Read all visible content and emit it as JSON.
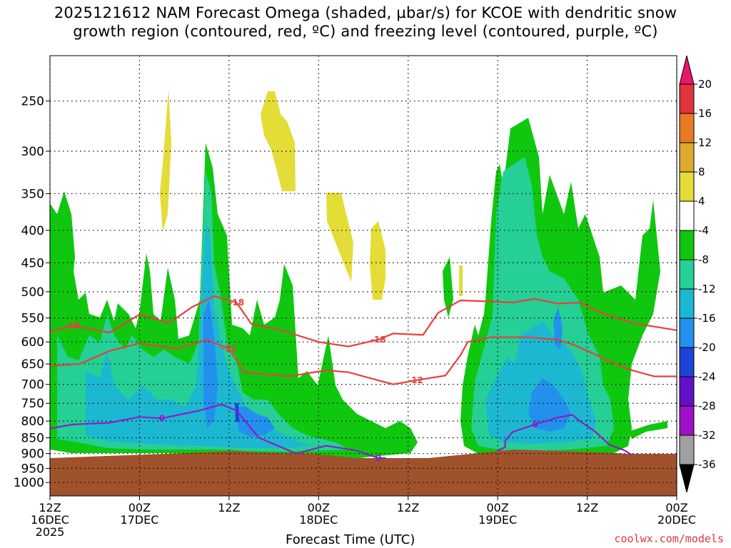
{
  "title_lines": [
    "2025121612 NAM Forecast Omega (shaded, µbar/s) for KCOE with dendritic snow",
    "growth region (contoured, red, ºC) and freezing level (contoured, purple, ºC)"
  ],
  "xaxis_title": "Forecast Time (UTC)",
  "footer": "coolwx.com/models",
  "chart_data": {
    "type": "heatmap",
    "title": "2025121612 NAM Forecast Omega (shaded, µbar/s) for KCOE with dendritic snow growth region (contoured, red, ºC) and freezing level (contoured, purple, ºC)",
    "xlabel": "Forecast Time (UTC)",
    "ylabel": "",
    "x_ticks": [
      {
        "hour": 0,
        "lines": [
          "12Z",
          "16DEC",
          "2025"
        ]
      },
      {
        "hour": 12,
        "lines": [
          "00Z",
          "17DEC"
        ]
      },
      {
        "hour": 24,
        "lines": [
          "12Z"
        ]
      },
      {
        "hour": 36,
        "lines": [
          "00Z",
          "18DEC"
        ]
      },
      {
        "hour": 48,
        "lines": [
          "12Z"
        ]
      },
      {
        "hour": 60,
        "lines": [
          "00Z",
          "19DEC"
        ]
      },
      {
        "hour": 72,
        "lines": [
          "12Z"
        ]
      },
      {
        "hour": 84,
        "lines": [
          "00Z",
          "20DEC"
        ]
      }
    ],
    "x_range_hours": [
      0,
      84
    ],
    "y_ticks_mb": [
      250,
      300,
      350,
      400,
      450,
      500,
      550,
      600,
      650,
      700,
      750,
      800,
      850,
      900,
      950,
      1000
    ],
    "y_scale": "log-pressure",
    "grid": true,
    "colorbar": {
      "labels": [
        "20",
        "16",
        "12",
        "8",
        "4",
        "-4",
        "-8",
        "-12",
        "-16",
        "-20",
        "-24",
        "-28",
        "-32",
        "-36"
      ],
      "colors": [
        "#e8166e",
        "#e0353d",
        "#e87a22",
        "#dfa82e",
        "#e4dc37",
        "#ffffff",
        "#0fc70f",
        "#25cf96",
        "#1cb8d2",
        "#2390ee",
        "#1c44d8",
        "#6311c8",
        "#a010c8",
        "#a0a0a0",
        "#000000"
      ]
    },
    "shading_samples": [
      {
        "hour": 9,
        "pressure_mb": 700,
        "omega": -14
      },
      {
        "hour": 22,
        "pressure_mb": 600,
        "omega": -18
      },
      {
        "hour": 25,
        "pressure_mb": 780,
        "omega": -22
      },
      {
        "hour": 15,
        "pressure_mb": 300,
        "omega": 6
      },
      {
        "hour": 30,
        "pressure_mb": 280,
        "omega": 6
      },
      {
        "hour": 38,
        "pressure_mb": 400,
        "omega": 5
      },
      {
        "hour": 69,
        "pressure_mb": 780,
        "omega": -18
      },
      {
        "hour": 64,
        "pressure_mb": 400,
        "omega": -10
      }
    ],
    "contours": [
      {
        "label": "-18",
        "color": "#e8403a",
        "points": [
          [
            0,
            578
          ],
          [
            3,
            566
          ],
          [
            8,
            580
          ],
          [
            12,
            543
          ],
          [
            16,
            560
          ],
          [
            19,
            529
          ],
          [
            22,
            508
          ],
          [
            25,
            520
          ],
          [
            27,
            562
          ],
          [
            31,
            575
          ],
          [
            36,
            600
          ],
          [
            40,
            610
          ],
          [
            44,
            595
          ],
          [
            46,
            582
          ],
          [
            50,
            585
          ],
          [
            52,
            540
          ],
          [
            55,
            516
          ],
          [
            59,
            518
          ],
          [
            62,
            520
          ],
          [
            65,
            513
          ],
          [
            68,
            522
          ],
          [
            71,
            520
          ],
          [
            74,
            540
          ],
          [
            78,
            560
          ],
          [
            82,
            570
          ],
          [
            84,
            575
          ]
        ]
      },
      {
        "label": "-12",
        "color": "#e8403a",
        "points": [
          [
            0,
            655
          ],
          [
            4,
            650
          ],
          [
            8,
            620
          ],
          [
            12,
            603
          ],
          [
            17,
            615
          ],
          [
            21,
            595
          ],
          [
            24,
            615
          ],
          [
            26,
            670
          ],
          [
            32,
            680
          ],
          [
            37,
            665
          ],
          [
            40,
            670
          ],
          [
            44,
            690
          ],
          [
            46,
            700
          ],
          [
            49,
            690
          ],
          [
            53,
            678
          ],
          [
            55,
            630
          ],
          [
            56,
            600
          ],
          [
            59,
            590
          ],
          [
            64,
            590
          ],
          [
            68,
            595
          ],
          [
            70,
            605
          ],
          [
            73,
            627
          ],
          [
            75,
            645
          ],
          [
            78,
            665
          ],
          [
            81,
            680
          ],
          [
            84,
            680
          ]
        ]
      },
      {
        "label": "0",
        "color": "#8b1ec8",
        "points": [
          [
            0,
            822
          ],
          [
            3,
            810
          ],
          [
            8,
            805
          ],
          [
            12,
            788
          ],
          [
            15,
            792
          ],
          [
            20,
            770
          ],
          [
            23,
            753
          ],
          [
            25,
            770
          ],
          [
            28,
            850
          ],
          [
            33,
            900
          ],
          [
            37,
            875
          ],
          [
            41,
            890
          ],
          [
            44,
            915
          ],
          [
            45,
            915
          ]
        ]
      },
      {
        "label": "0",
        "color": "#8b1ec8",
        "points": [
          [
            60,
            890
          ],
          [
            61,
            880
          ],
          [
            61,
            860
          ],
          [
            62,
            832
          ],
          [
            65,
            810
          ],
          [
            68,
            790
          ],
          [
            70,
            782
          ],
          [
            71,
            800
          ],
          [
            73,
            830
          ],
          [
            75,
            872
          ],
          [
            77,
            890
          ],
          [
            78,
            905
          ]
        ]
      }
    ]
  }
}
